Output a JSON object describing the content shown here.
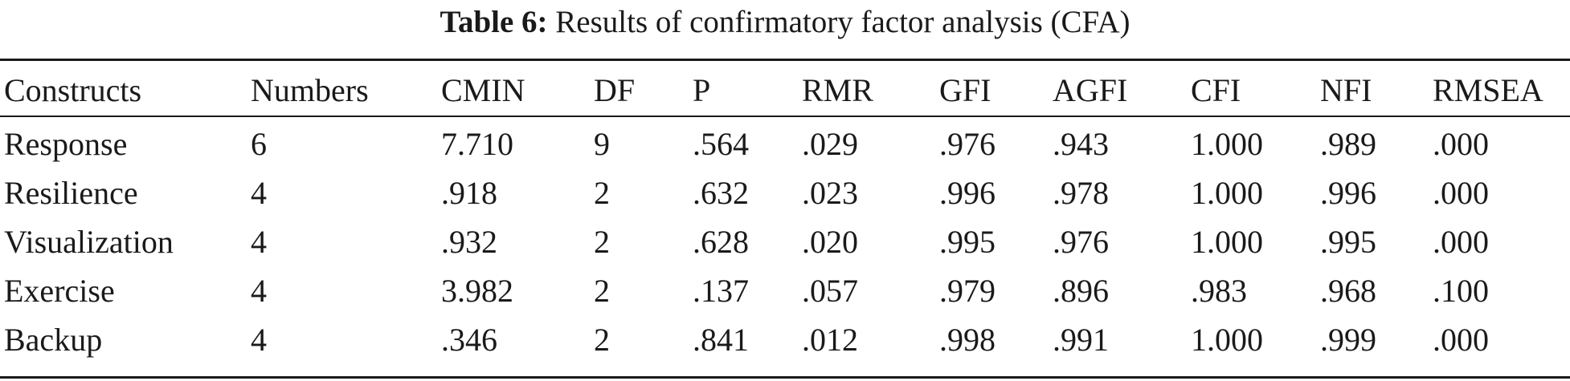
{
  "caption": {
    "label": "Table 6:",
    "title": "Results of confirmatory factor analysis (CFA)"
  },
  "table": {
    "headers": [
      "Constructs",
      "Numbers",
      "CMIN",
      "DF",
      "P",
      "RMR",
      "GFI",
      "AGFI",
      "CFI",
      "NFI",
      "RMSEA"
    ],
    "rows": [
      [
        "Response",
        "6",
        "7.710",
        "9",
        ".564",
        ".029",
        ".976",
        ".943",
        "1.000",
        ".989",
        ".000"
      ],
      [
        "Resilience",
        "4",
        ".918",
        "2",
        ".632",
        ".023",
        ".996",
        ".978",
        "1.000",
        ".996",
        ".000"
      ],
      [
        "Visualization",
        "4",
        ".932",
        "2",
        ".628",
        ".020",
        ".995",
        ".976",
        "1.000",
        ".995",
        ".000"
      ],
      [
        "Exercise",
        "4",
        "3.982",
        "2",
        ".137",
        ".057",
        ".979",
        ".896",
        ".983",
        ".968",
        ".100"
      ],
      [
        "Backup",
        "4",
        ".346",
        "2",
        ".841",
        ".012",
        ".998",
        ".991",
        "1.000",
        ".999",
        ".000"
      ]
    ]
  }
}
